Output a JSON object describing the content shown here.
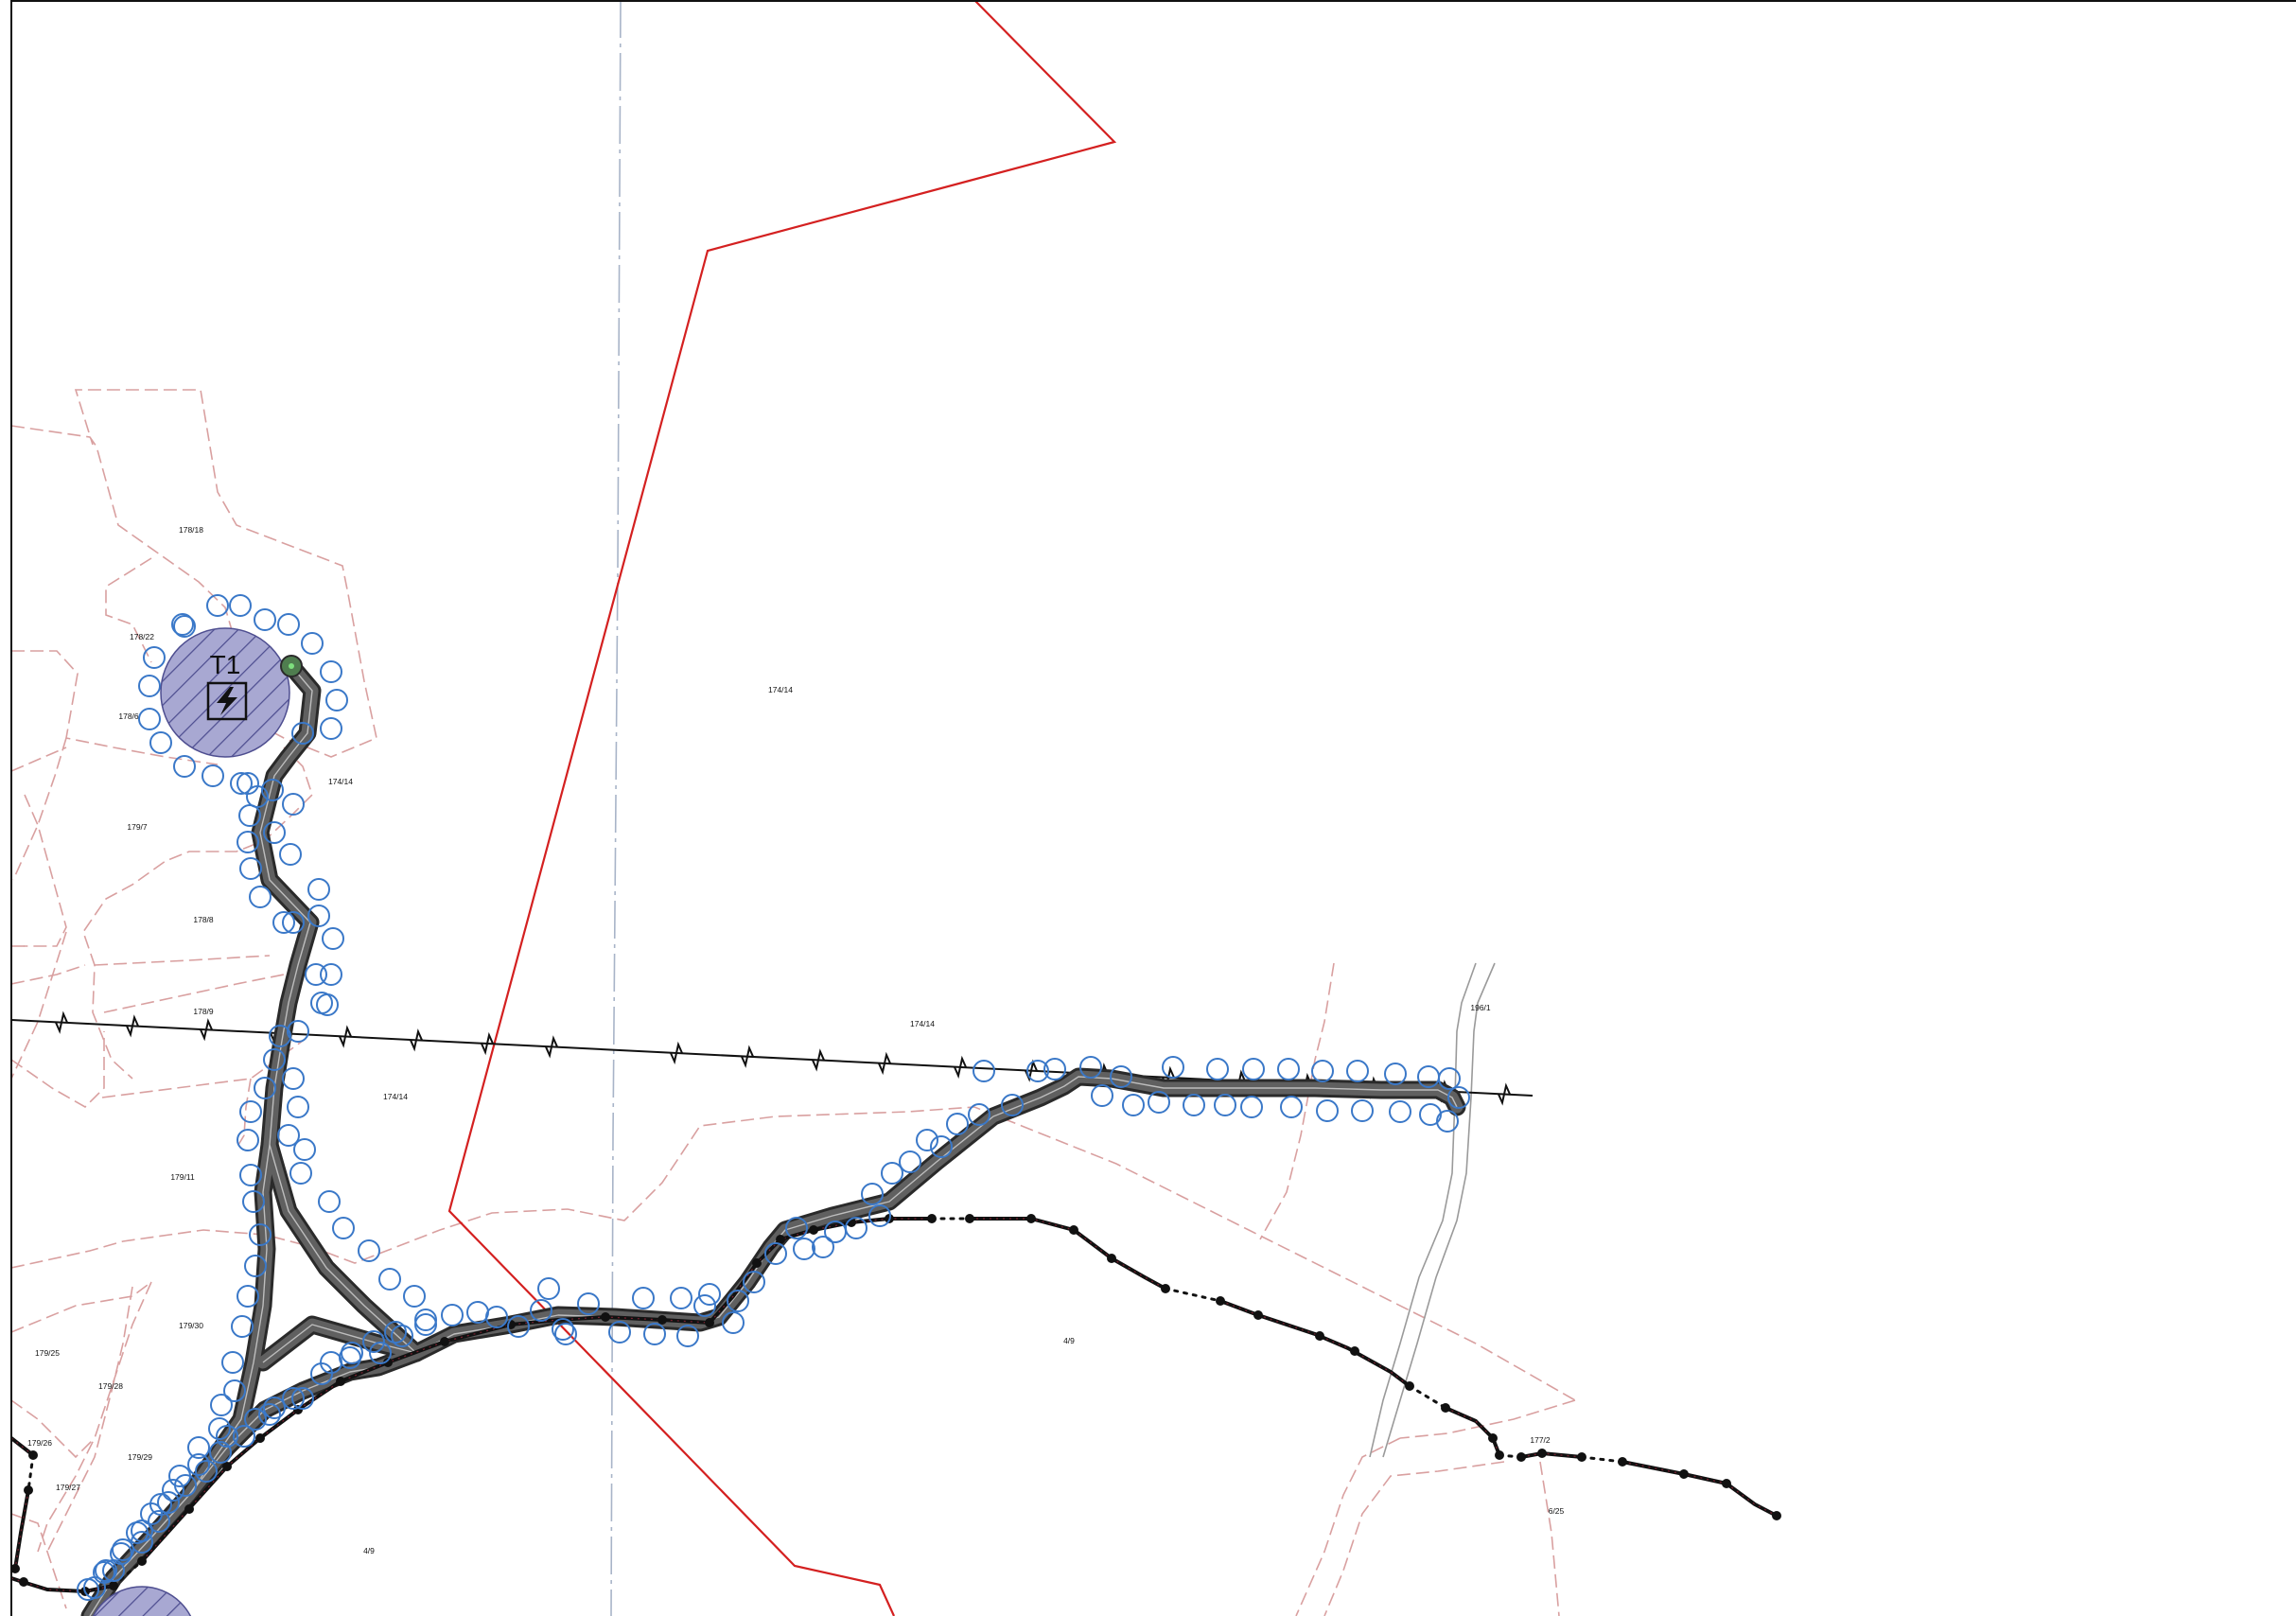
{
  "map": {
    "turbine": {
      "label": "T1",
      "icon": "lightning-bolt-icon"
    },
    "parcel_labels": [
      "178/18",
      "178/22",
      "178/6",
      "174/14",
      "174/14",
      "179/7",
      "178/8",
      "178/9",
      "174/14",
      "174/14",
      "196/1",
      "179/11",
      "179/30",
      "179/25",
      "179/28",
      "179/26",
      "179/29",
      "179/27",
      "4/9",
      "4/9",
      "177/2",
      "6/25"
    ],
    "colors": {
      "cadastral": "#d9a0a0",
      "site_boundary": "#d42020",
      "road_fill": "#606060",
      "road_edge": "#2a2a2a",
      "tree_circle": "#3a78c8",
      "overhead_line": "#111111",
      "cable_route": "#111111",
      "cable_dots": "#7a2030",
      "turbine_fill": "#a8a8d2",
      "turbine_hatch": "#4e4e90",
      "frame": "#111111",
      "creek": "#9a9a9a",
      "axis_line": "#a8b4c8"
    }
  }
}
